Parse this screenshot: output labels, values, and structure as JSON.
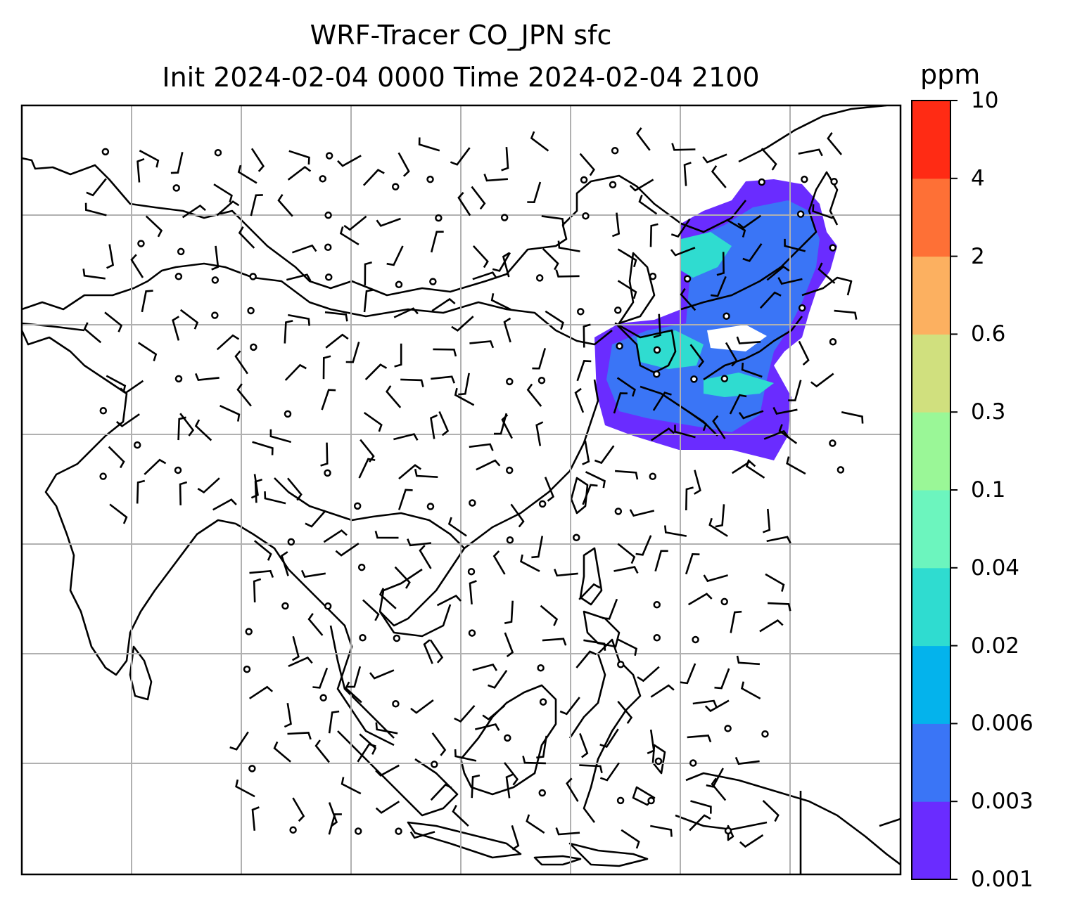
{
  "title": {
    "line1": "WRF-Tracer CO_JPN sfc",
    "line2": "Init 2024-02-04 0000 Time 2024-02-04 2100"
  },
  "colorbar": {
    "unit": "ppm",
    "levels": [
      "0.001",
      "0.003",
      "0.006",
      "0.02",
      "0.04",
      "0.1",
      "0.3",
      "0.6",
      "2",
      "4",
      "10"
    ],
    "colors": [
      "#6a2cff",
      "#3a75f6",
      "#04b3ec",
      "#2fdcd0",
      "#6cf5be",
      "#9af797",
      "#d0e07e",
      "#fcb060",
      "#fe7036",
      "#ff2b14"
    ]
  },
  "map": {
    "grid": true,
    "plume_color_main": "#6a2cff",
    "plume_color_mid": "#3a75f6",
    "plume_color_high": "#2fdcd0",
    "wind_barbs": "shown",
    "calm_markers": "shown"
  }
}
